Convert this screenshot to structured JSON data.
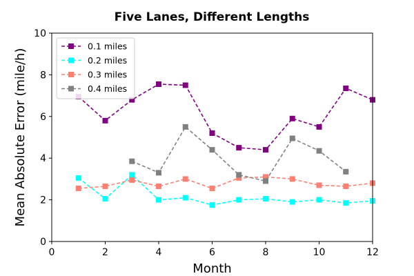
{
  "chart_data": {
    "type": "line",
    "title": "Five Lanes, Different Lengths",
    "xlabel": "Month",
    "ylabel": "Mean Absolute Error (mile/h)",
    "xlim": [
      0,
      12
    ],
    "ylim": [
      0,
      10
    ],
    "xticks": [
      0,
      2,
      4,
      6,
      8,
      10,
      12
    ],
    "yticks": [
      0,
      2,
      4,
      6,
      8,
      10
    ],
    "grid": false,
    "legend_position": "top-left",
    "line_style": "dashed",
    "marker": "square",
    "series": [
      {
        "name": "0.1 miles",
        "color": "#800080",
        "x": [
          1,
          2,
          3,
          4,
          5,
          6,
          7,
          8,
          9,
          10,
          11,
          12
        ],
        "y": [
          6.95,
          5.8,
          6.8,
          7.55,
          7.5,
          5.2,
          4.5,
          4.4,
          5.9,
          5.5,
          7.35,
          6.8
        ]
      },
      {
        "name": "0.2 miles",
        "color": "#00ffff",
        "x": [
          1,
          2,
          3,
          4,
          5,
          6,
          7,
          8,
          9,
          10,
          11,
          12
        ],
        "y": [
          3.05,
          2.05,
          3.2,
          2.0,
          2.1,
          1.75,
          2.0,
          2.05,
          1.9,
          2.0,
          1.85,
          1.95
        ]
      },
      {
        "name": "0.3 miles",
        "color": "#fa8072",
        "x": [
          1,
          2,
          3,
          4,
          5,
          6,
          7,
          8,
          9,
          10,
          11,
          12
        ],
        "y": [
          2.55,
          2.65,
          2.95,
          2.65,
          3.0,
          2.55,
          3.05,
          3.1,
          3.0,
          2.7,
          2.65,
          2.8
        ]
      },
      {
        "name": "0.4 miles",
        "color": "#808080",
        "x": [
          3,
          4,
          5,
          6,
          7,
          8,
          9,
          10,
          11
        ],
        "y": [
          3.85,
          3.3,
          5.5,
          4.4,
          3.2,
          2.9,
          4.95,
          4.35,
          3.35
        ]
      }
    ]
  }
}
